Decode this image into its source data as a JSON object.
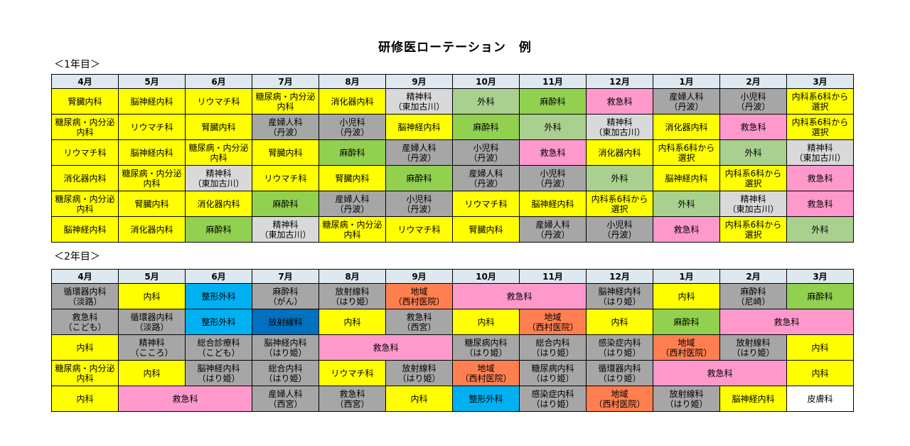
{
  "title": "研修医ローテーション　例",
  "year1": {
    "label": "＜1年目＞",
    "months": [
      "4月",
      "5月",
      "6月",
      "7月",
      "8月",
      "9月",
      "10月",
      "11月",
      "12月",
      "1月",
      "2月",
      "3月"
    ],
    "rows": [
      [
        [
          "腎臓内科",
          "yellow",
          1
        ],
        [
          "脳神経内科",
          "yellow",
          1
        ],
        [
          "リウマチ科",
          "yellow",
          1
        ],
        [
          "糖尿病・内分泌\n内科",
          "yellow",
          1
        ],
        [
          "消化器内科",
          "yellow",
          1
        ],
        [
          "精神科\n（東加古川）",
          "lgray",
          1
        ],
        [
          "外科",
          "lgreen",
          1
        ],
        [
          "麻酔科",
          "green",
          1
        ],
        [
          "救急科",
          "pink",
          1
        ],
        [
          "産婦人科\n（丹波）",
          "gray",
          1
        ],
        [
          "小児科\n（丹波）",
          "gray",
          1
        ],
        [
          "内科系6科から\n選択",
          "yellow",
          1
        ]
      ],
      [
        [
          "糖尿病・内分泌\n内科",
          "yellow",
          1
        ],
        [
          "リウマチ科",
          "yellow",
          1
        ],
        [
          "腎臓内科",
          "yellow",
          1
        ],
        [
          "産婦人科\n（丹波）",
          "gray",
          1
        ],
        [
          "小児科\n（丹波）",
          "gray",
          1
        ],
        [
          "脳神経内科",
          "yellow",
          1
        ],
        [
          "麻酔科",
          "green",
          1
        ],
        [
          "外科",
          "lgreen",
          1
        ],
        [
          "精神科\n（東加古川）",
          "lgray",
          1
        ],
        [
          "消化器内科",
          "yellow",
          1
        ],
        [
          "救急科",
          "pink",
          1
        ],
        [
          "内科系6科から\n選択",
          "yellow",
          1
        ]
      ],
      [
        [
          "リウマチ科",
          "yellow",
          1
        ],
        [
          "脳神経内科",
          "yellow",
          1
        ],
        [
          "糖尿病・内分泌\n内科",
          "yellow",
          1
        ],
        [
          "腎臓内科",
          "yellow",
          1
        ],
        [
          "麻酔科",
          "green",
          1
        ],
        [
          "産婦人科\n（丹波）",
          "gray",
          1
        ],
        [
          "小児科\n（丹波）",
          "gray",
          1
        ],
        [
          "救急科",
          "pink",
          1
        ],
        [
          "消化器内科",
          "yellow",
          1
        ],
        [
          "内科系6科から\n選択",
          "yellow",
          1
        ],
        [
          "外科",
          "lgreen",
          1
        ],
        [
          "精神科\n（東加古川）",
          "lgray",
          1
        ]
      ],
      [
        [
          "消化器内科",
          "yellow",
          1
        ],
        [
          "糖尿病・内分泌\n内科",
          "yellow",
          1
        ],
        [
          "精神科\n（東加古川）",
          "lgray",
          1
        ],
        [
          "リウマチ科",
          "yellow",
          1
        ],
        [
          "腎臓内科",
          "yellow",
          1
        ],
        [
          "麻酔科",
          "green",
          1
        ],
        [
          "産婦人科\n（丹波）",
          "gray",
          1
        ],
        [
          "小児科\n（丹波）",
          "gray",
          1
        ],
        [
          "外科",
          "lgreen",
          1
        ],
        [
          "脳神経内科",
          "yellow",
          1
        ],
        [
          "内科系6科から\n選択",
          "yellow",
          1
        ],
        [
          "救急科",
          "pink",
          1
        ]
      ],
      [
        [
          "糖尿病・内分泌\n内科",
          "yellow",
          1
        ],
        [
          "腎臓内科",
          "yellow",
          1
        ],
        [
          "消化器内科",
          "yellow",
          1
        ],
        [
          "麻酔科",
          "green",
          1
        ],
        [
          "産婦人科\n（丹波）",
          "gray",
          1
        ],
        [
          "小児科\n（丹波）",
          "gray",
          1
        ],
        [
          "リウマチ科",
          "yellow",
          1
        ],
        [
          "脳神経内科",
          "yellow",
          1
        ],
        [
          "内科系6科から\n選択",
          "yellow",
          1
        ],
        [
          "外科",
          "lgreen",
          1
        ],
        [
          "精神科\n（東加古川）",
          "lgray",
          1
        ],
        [
          "救急科",
          "pink",
          1
        ]
      ],
      [
        [
          "脳神経内科",
          "yellow",
          1
        ],
        [
          "消化器内科",
          "yellow",
          1
        ],
        [
          "麻酔科",
          "green",
          1
        ],
        [
          "精神科\n（東加古川）",
          "lgray",
          1
        ],
        [
          "糖尿病・内分泌\n内科",
          "yellow",
          1
        ],
        [
          "リウマチ科",
          "yellow",
          1
        ],
        [
          "腎臓内科",
          "yellow",
          1
        ],
        [
          "産婦人科\n（丹波）",
          "gray",
          1
        ],
        [
          "小児科\n（丹波）",
          "gray",
          1
        ],
        [
          "救急科",
          "pink",
          1
        ],
        [
          "内科系6科から\n選択",
          "yellow",
          1
        ],
        [
          "外科",
          "lgreen",
          1
        ]
      ]
    ]
  },
  "year2": {
    "label": "＜2年目＞",
    "months": [
      "4月",
      "5月",
      "6月",
      "7月",
      "8月",
      "9月",
      "10月",
      "11月",
      "12月",
      "1月",
      "2月",
      "3月"
    ],
    "rows": [
      [
        [
          "循環器内科\n（淡路）",
          "gray",
          1
        ],
        [
          "内科",
          "yellow",
          1
        ],
        [
          "整形外科",
          "blue",
          1
        ],
        [
          "麻酔科\n（がん）",
          "gray",
          1
        ],
        [
          "放射線科\n（はり姫）",
          "gray",
          1
        ],
        [
          "地域\n（西村医院）",
          "orange",
          1
        ],
        [
          "救急科",
          "pink",
          2
        ],
        [
          "脳神経内科\n（はり姫）",
          "gray",
          1
        ],
        [
          "内科",
          "yellow",
          1
        ],
        [
          "麻酔科\n（尼崎）",
          "gray",
          1
        ],
        [
          "麻酔科",
          "green",
          1
        ]
      ],
      [
        [
          "救急科\n（こども）",
          "gray",
          1
        ],
        [
          "循環器内科\n（淡路）",
          "gray",
          1
        ],
        [
          "整形外科",
          "blue",
          1
        ],
        [
          "放射線科",
          "dblue",
          1
        ],
        [
          "内科",
          "yellow",
          1
        ],
        [
          "救急科\n（西宮）",
          "gray",
          1
        ],
        [
          "内科",
          "yellow",
          1
        ],
        [
          "地域\n（西村医院）",
          "orange",
          1
        ],
        [
          "内科",
          "yellow",
          1
        ],
        [
          "麻酔科",
          "green",
          1
        ],
        [
          "救急科",
          "pink",
          2
        ]
      ],
      [
        [
          "内科",
          "yellow",
          1
        ],
        [
          "精神科\n（こころ）",
          "gray",
          1
        ],
        [
          "総合診療科\n（こども）",
          "gray",
          1
        ],
        [
          "脳神経内科\n（はり姫）",
          "gray",
          1
        ],
        [
          "救急科",
          "pink",
          2
        ],
        [
          "糖尿病内科\n（はり姫）",
          "gray",
          1
        ],
        [
          "総合内科\n（はり姫）",
          "gray",
          1
        ],
        [
          "感染症内科\n（はり姫）",
          "gray",
          1
        ],
        [
          "地域\n（西村医院）",
          "orange",
          1
        ],
        [
          "放射線科\n（はり姫）",
          "gray",
          1
        ],
        [
          "内科",
          "yellow",
          1
        ]
      ],
      [
        [
          "糖尿病・内分泌\n内科",
          "yellow",
          1
        ],
        [
          "内科",
          "yellow",
          1
        ],
        [
          "脳神経内科\n（はり姫）",
          "gray",
          1
        ],
        [
          "総合内科\n（はり姫）",
          "gray",
          1
        ],
        [
          "リウマチ科",
          "yellow",
          1
        ],
        [
          "放射線科\n（はり姫）",
          "gray",
          1
        ],
        [
          "地域\n（西村医院）",
          "orange",
          1
        ],
        [
          "糖尿病内科\n（はり姫）",
          "gray",
          1
        ],
        [
          "循環器内科\n（はり姫）",
          "gray",
          1
        ],
        [
          "救急科",
          "pink",
          2
        ],
        [
          "内科",
          "yellow",
          1
        ]
      ],
      [
        [
          "内科",
          "yellow",
          1
        ],
        [
          "救急科",
          "pink",
          2
        ],
        [
          "産婦人科\n（西宮）",
          "gray",
          1
        ],
        [
          "救急科\n（西宮）",
          "gray",
          1
        ],
        [
          "内科",
          "yellow",
          1
        ],
        [
          "整形外科",
          "blue",
          1
        ],
        [
          "感染症内科\n（はり姫）",
          "gray",
          1
        ],
        [
          "地域\n（西村医院）",
          "orange",
          1
        ],
        [
          "放射線科\n（はり姫）",
          "gray",
          1
        ],
        [
          "脳神経内科",
          "yellow",
          1
        ],
        [
          "皮膚科",
          "white",
          1
        ]
      ]
    ]
  }
}
